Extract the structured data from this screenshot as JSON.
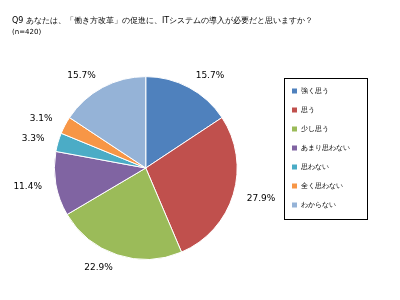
{
  "chart_data": {
    "type": "pie",
    "title": "Q9 あなたは、「働き方改革」の促進に、ITシステムの導入が必要だと思いますか？",
    "subtitle": "(n=420)",
    "categories": [
      "強く思う",
      "思う",
      "少し思う",
      "あまり思わない",
      "思わない",
      "全く思わない",
      "わからない"
    ],
    "values": [
      15.7,
      27.9,
      22.9,
      11.4,
      3.3,
      3.1,
      15.7
    ],
    "value_labels": [
      "15.7%",
      "27.9%",
      "22.9%",
      "11.4%",
      "3.3%",
      "3.1%",
      "15.7%"
    ],
    "colors": [
      "#4f81bd",
      "#c0504d",
      "#9bbb59",
      "#8064a2",
      "#4bacc6",
      "#f79646",
      "#95b3d7"
    ],
    "data_labels": true,
    "legend": "right"
  }
}
